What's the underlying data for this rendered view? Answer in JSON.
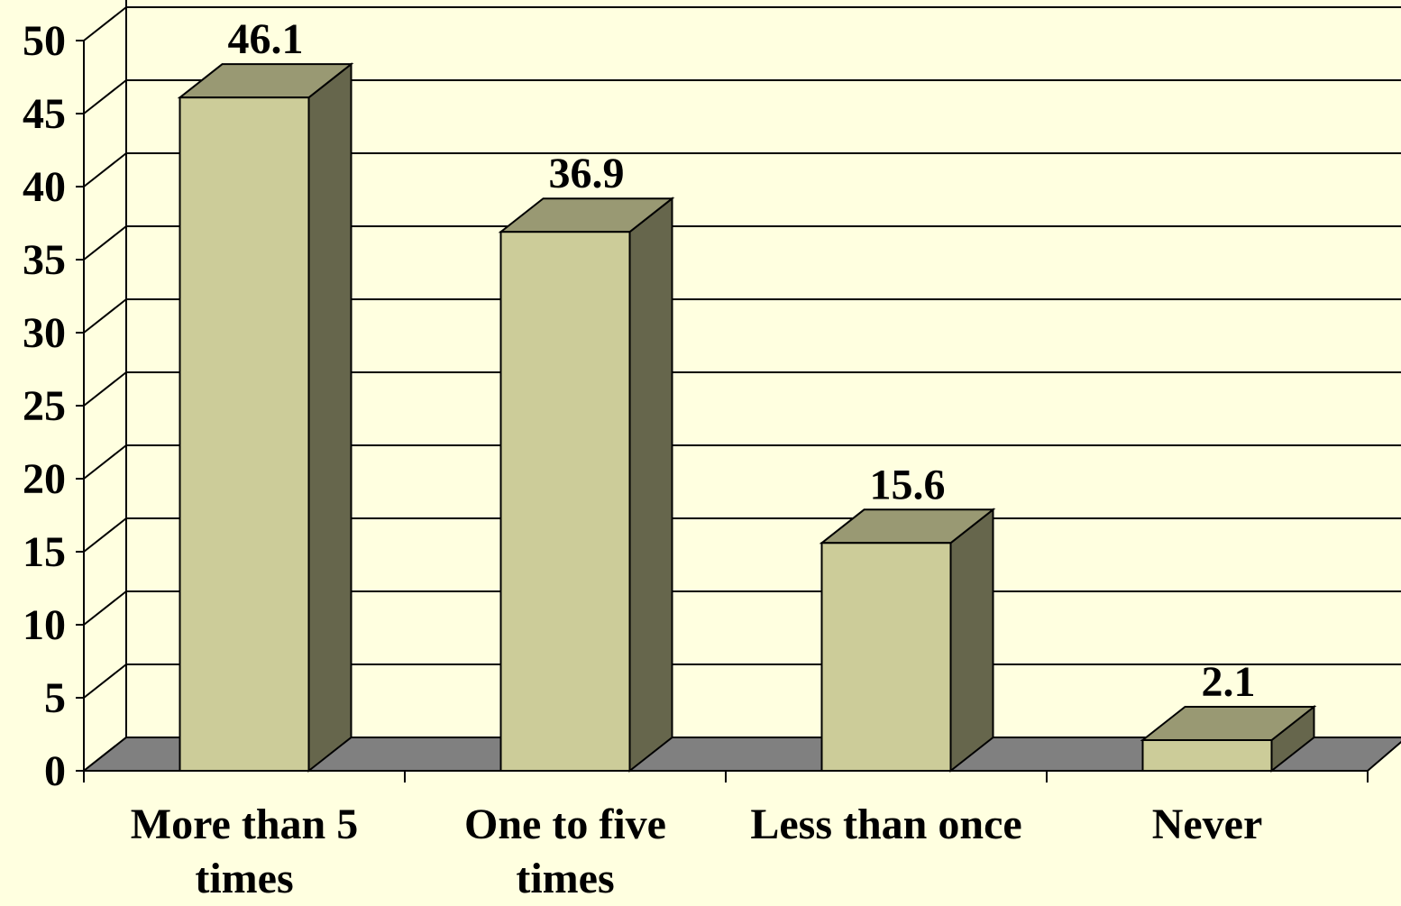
{
  "chart_data": {
    "type": "bar",
    "style": "3d",
    "categories": [
      [
        "More than 5",
        "times"
      ],
      [
        "One to five",
        "times"
      ],
      [
        "Less than once"
      ],
      [
        "Never"
      ]
    ],
    "values": [
      46.1,
      36.9,
      15.6,
      2.1
    ],
    "data_labels": [
      "46.1",
      "36.9",
      "15.6",
      "2.1"
    ],
    "y_ticks": [
      "0",
      "5",
      "10",
      "15",
      "20",
      "25",
      "30",
      "35",
      "40",
      "45",
      "50"
    ],
    "ylim": [
      0,
      50
    ],
    "grid": true,
    "legend": "none",
    "title": "",
    "xlabel": "",
    "ylabel": "",
    "colors": {
      "background": "#ffffe0",
      "bar_front": "#cccc99",
      "bar_top": "#999973",
      "bar_side": "#66664c",
      "floor": "#808080",
      "line": "#000000"
    }
  }
}
